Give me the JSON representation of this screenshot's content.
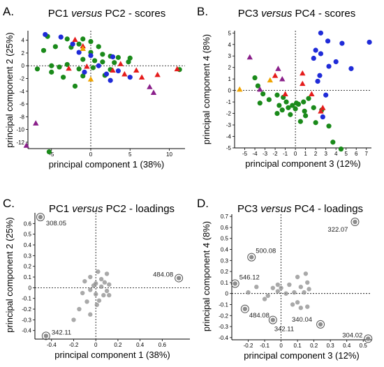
{
  "panels": [
    {
      "letter": "A.",
      "title_pre": "PC1 ",
      "title_italic": "versus",
      "title_post": " PC2 - scores",
      "chart_data": {
        "type": "scatter",
        "xlabel": "principal component 1 (38%)",
        "ylabel": "principal component 2 (25%)",
        "xlim": [
          -8,
          12
        ],
        "ylim": [
          -13,
          5.5
        ],
        "xticks": [
          -5,
          0,
          5,
          10
        ],
        "yticks": [
          4,
          2,
          0,
          -2,
          -4,
          -6,
          -8,
          -10,
          -12
        ],
        "series": [
          {
            "marker": "circle",
            "color": "#1a8a1a",
            "points": [
              [
                -5.5,
                4.6
              ],
              [
                -3,
                4.2
              ],
              [
                -1,
                4.2
              ],
              [
                0,
                3.8
              ],
              [
                -1.5,
                3.4
              ],
              [
                1,
                3
              ],
              [
                -4.5,
                3
              ],
              [
                -2.5,
                2.9
              ],
              [
                -6,
                2.4
              ],
              [
                0,
                2.1
              ],
              [
                1.5,
                1.8
              ],
              [
                2.5,
                1.5
              ],
              [
                3.5,
                1.3
              ],
              [
                5,
                1.2
              ],
              [
                -1,
                1
              ],
              [
                0.5,
                0.8
              ],
              [
                1.5,
                0.6
              ],
              [
                3,
                0.5
              ],
              [
                4.8,
                0.6
              ],
              [
                -3,
                0.2
              ],
              [
                -5,
                0
              ],
              [
                -6.8,
                -0.5
              ],
              [
                -1.5,
                -0.5
              ],
              [
                0.3,
                -0.3
              ],
              [
                2.5,
                -0.6
              ],
              [
                -5,
                -1
              ],
              [
                -3.5,
                -1.8
              ],
              [
                -1,
                -1.6
              ],
              [
                1.8,
                -1.5
              ],
              [
                -2,
                -3.2
              ],
              [
                -4,
                -0.2
              ],
              [
                11.3,
                -0.6
              ],
              [
                -5.3,
                -13.5
              ]
            ]
          },
          {
            "marker": "circle",
            "color": "#1f2bd8",
            "points": [
              [
                -5.8,
                4.9
              ],
              [
                -3.8,
                4.5
              ],
              [
                -2.3,
                3.4
              ],
              [
                -1.5,
                2.1
              ],
              [
                0,
                1.6
              ],
              [
                2.8,
                1.4
              ],
              [
                1,
                0
              ],
              [
                3.5,
                -0.8
              ],
              [
                2,
                -1.3
              ],
              [
                5,
                -1.8
              ],
              [
                2.5,
                -2.3
              ],
              [
                -0.8,
                -1
              ]
            ]
          },
          {
            "marker": "triangle",
            "color": "#e51c1c",
            "points": [
              [
                -2,
                4.1
              ],
              [
                -1,
                3.1
              ],
              [
                3.8,
                0.3
              ],
              [
                -0.5,
                -0.1
              ],
              [
                -2.8,
                -0.4
              ],
              [
                2.8,
                -0.7
              ],
              [
                5.8,
                -0.7
              ],
              [
                6.5,
                -1.8
              ],
              [
                4.3,
                -1.3
              ],
              [
                11,
                -0.5
              ],
              [
                8.5,
                -1.4
              ]
            ]
          },
          {
            "marker": "triangle",
            "color": "#f0a400",
            "points": [
              [
                -1,
                2.7
              ],
              [
                0,
                -2.1
              ]
            ]
          },
          {
            "marker": "triangle",
            "color": "#8a1f8a",
            "points": [
              [
                7.5,
                -3.3
              ],
              [
                8,
                -4.2
              ],
              [
                -7,
                -9
              ],
              [
                -8.2,
                -12.5
              ]
            ]
          }
        ]
      }
    },
    {
      "letter": "B.",
      "title_pre": "PC3 ",
      "title_italic": "versus",
      "title_post": " PC4 - scores",
      "chart_data": {
        "type": "scatter",
        "xlabel": "principal component 3 (12%)",
        "ylabel": "principal component 4 (8%)",
        "xlim": [
          -6,
          7.5
        ],
        "ylim": [
          -5,
          5.2
        ],
        "xticks": [
          -5,
          -4,
          -3,
          -2,
          -1,
          0,
          1,
          2,
          3,
          4,
          5,
          6,
          7
        ],
        "yticks": [
          5,
          4,
          3,
          2,
          1,
          0,
          -1,
          -2,
          -3,
          -4,
          -5
        ],
        "series": [
          {
            "marker": "circle",
            "color": "#1a8a1a",
            "points": [
              [
                -4,
                1.1
              ],
              [
                -3.7,
                0.4
              ],
              [
                -3.2,
                -0.3
              ],
              [
                -1.8,
                -0.4
              ],
              [
                -1.2,
                -0.6
              ],
              [
                -0.9,
                -1
              ],
              [
                -0.3,
                -1.3
              ],
              [
                0.3,
                -1.2
              ],
              [
                0.8,
                -1
              ],
              [
                1.3,
                -0.7
              ],
              [
                -1.6,
                -1.3
              ],
              [
                -0.7,
                -1.5
              ],
              [
                0,
                -1.6
              ],
              [
                0.9,
                -1.8
              ],
              [
                1.8,
                -1.5
              ],
              [
                2.6,
                -1.7
              ],
              [
                -3.5,
                -1.1
              ],
              [
                -2.6,
                -0.8
              ],
              [
                -1.8,
                -2
              ],
              [
                -0.5,
                -2.1
              ],
              [
                1,
                -2.2
              ],
              [
                2,
                -2.8
              ],
              [
                3.3,
                -3.1
              ],
              [
                0.5,
                -2.7
              ],
              [
                3.7,
                -4.5
              ],
              [
                4.5,
                -5.1
              ],
              [
                -1.3,
                -1.7
              ],
              [
                0.1,
                -1.1
              ]
            ]
          },
          {
            "marker": "circle",
            "color": "#1f2bd8",
            "points": [
              [
                2.5,
                5
              ],
              [
                7.3,
                4.2
              ],
              [
                3.2,
                4.3
              ],
              [
                4.6,
                4.1
              ],
              [
                2,
                3.5
              ],
              [
                2.5,
                3.2
              ],
              [
                1.8,
                2.8
              ],
              [
                4,
                2.5
              ],
              [
                3.3,
                2.1
              ],
              [
                5.5,
                1.9
              ],
              [
                2.4,
                1.3
              ],
              [
                2.2,
                0.8
              ],
              [
                3,
                -0.4
              ],
              [
                2.7,
                -2.3
              ]
            ]
          },
          {
            "marker": "triangle",
            "color": "#e51c1c",
            "points": [
              [
                -2,
                1.3
              ],
              [
                0.7,
                1.5
              ],
              [
                0.7,
                0.6
              ],
              [
                -1,
                -0.3
              ],
              [
                1.6,
                -0.3
              ],
              [
                2.7,
                -1.5
              ],
              [
                2.5,
                -1.8
              ]
            ]
          },
          {
            "marker": "triangle",
            "color": "#f0a400",
            "points": [
              [
                -5.5,
                0.1
              ],
              [
                -2.5,
                0.9
              ]
            ]
          },
          {
            "marker": "triangle",
            "color": "#8a1f8a",
            "points": [
              [
                -4.5,
                2.9
              ],
              [
                -1.7,
                1.9
              ],
              [
                -3.5,
                0.1
              ],
              [
                -1.3,
                1
              ]
            ]
          }
        ]
      }
    },
    {
      "letter": "C.",
      "title_pre": "PC1 ",
      "title_italic": "versus",
      "title_post": " PC2 - loadings",
      "chart_data": {
        "type": "scatter",
        "xlabel": "principal component 1 (38%)",
        "ylabel": "principal component 2 (25%)",
        "xlim": [
          -0.55,
          0.85
        ],
        "ylim": [
          -0.48,
          0.7
        ],
        "xticks": [
          -0.4,
          -0.2,
          0,
          0.2,
          0.4,
          0.6
        ],
        "yticks": [
          0.6,
          0.5,
          0.4,
          0.3,
          0.2,
          0.1,
          0,
          -0.1,
          -0.2,
          -0.3,
          -0.4
        ],
        "points": [
          [
            0.02,
            0.15
          ],
          [
            0.1,
            0.13
          ],
          [
            -0.05,
            0.1
          ],
          [
            0.05,
            0.08
          ],
          [
            -0.1,
            0.06
          ],
          [
            0.08,
            0.05
          ],
          [
            0,
            0.04
          ],
          [
            0.12,
            0.03
          ],
          [
            -0.02,
            0.02
          ],
          [
            0.05,
            0.01
          ],
          [
            -0.05,
            -0.02
          ],
          [
            0.1,
            -0.03
          ],
          [
            -0.12,
            -0.05
          ],
          [
            0,
            -0.06
          ],
          [
            0.07,
            -0.07
          ],
          [
            0.03,
            -0.12
          ],
          [
            -0.08,
            -0.13
          ],
          [
            0.01,
            -0.16
          ],
          [
            -0.15,
            -0.2
          ],
          [
            -0.05,
            -0.25
          ],
          [
            -0.2,
            -0.3
          ],
          [
            0.12,
            -0.07
          ]
        ],
        "highlighted": [
          {
            "x": -0.5,
            "y": 0.66,
            "label": "308.05"
          },
          {
            "x": 0.75,
            "y": 0.09,
            "label": "484.08"
          },
          {
            "x": -0.45,
            "y": -0.45,
            "label": "342.11"
          }
        ]
      }
    },
    {
      "letter": "D.",
      "title_pre": "PC3 ",
      "title_italic": "versus",
      "title_post": " PC4 - loadings",
      "chart_data": {
        "type": "scatter",
        "xlabel": "principal component 3 (12%)",
        "ylabel": "principal component 4 (8%)",
        "xlim": [
          -0.3,
          0.55
        ],
        "ylim": [
          -0.42,
          0.72
        ],
        "xticks": [
          -0.2,
          -0.1,
          0,
          0.1,
          0.2,
          0.3,
          0.4,
          0.5
        ],
        "yticks": [
          0.7,
          0.6,
          0.5,
          0.4,
          0.3,
          0.2,
          0.1,
          0,
          -0.1,
          -0.2,
          -0.3,
          -0.4
        ],
        "points": [
          [
            0.15,
            0.18
          ],
          [
            0.1,
            0.15
          ],
          [
            0.16,
            0.1
          ],
          [
            -0.02,
            0.08
          ],
          [
            0.05,
            0.08
          ],
          [
            0.12,
            0.06
          ],
          [
            0.17,
            0.04
          ],
          [
            0,
            0.05
          ],
          [
            -0.15,
            0.06
          ],
          [
            -0.05,
            0.05
          ],
          [
            0.08,
            0.01
          ],
          [
            0.14,
            0.01
          ],
          [
            -0.02,
            0.02
          ],
          [
            0.03,
            0
          ],
          [
            -0.08,
            -0.02
          ],
          [
            -0.1,
            -0.05
          ],
          [
            0.1,
            -0.08
          ],
          [
            0.16,
            -0.12
          ],
          [
            0.07,
            -0.1
          ],
          [
            -0.2,
            0.01
          ],
          [
            0.12,
            -0.13
          ]
        ],
        "highlighted": [
          {
            "x": 0.45,
            "y": 0.65,
            "label": "322.07"
          },
          {
            "x": -0.18,
            "y": 0.33,
            "label": "500.08"
          },
          {
            "x": -0.28,
            "y": 0.09,
            "label": "546.12"
          },
          {
            "x": -0.22,
            "y": -0.14,
            "label": "484.08"
          },
          {
            "x": -0.05,
            "y": -0.24,
            "label": "342.11"
          },
          {
            "x": 0.24,
            "y": -0.28,
            "label": "340.04"
          },
          {
            "x": 0.53,
            "y": -0.41,
            "label": "304.02"
          }
        ]
      }
    }
  ]
}
